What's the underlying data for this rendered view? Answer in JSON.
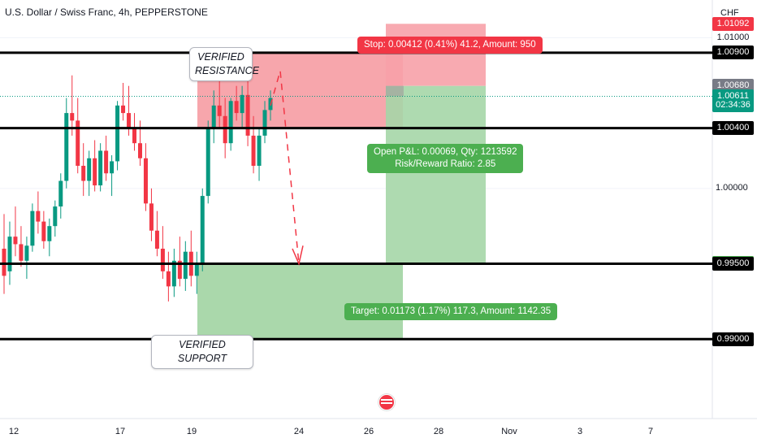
{
  "header": {
    "symbol_title": "U.S. Dollar / Swiss Franc, 4h, PEPPERSTONE",
    "currency": "CHF"
  },
  "chart_data": {
    "type": "candlestick",
    "ylim": [
      0.985,
      1.0125
    ],
    "y_tick_labels": [
      "1.01000",
      "1.00000"
    ],
    "x_tick_labels": [
      "12",
      "17",
      "19",
      "24",
      "26",
      "28",
      "Nov",
      "3",
      "7"
    ],
    "horizontal_levels": [
      {
        "price": 1.009,
        "label": "1.00900",
        "color": "#000000"
      },
      {
        "price": 1.004,
        "label": "1.00400",
        "color": "#000000"
      },
      {
        "price": 0.995,
        "label": "0.99500",
        "color": "#000000"
      },
      {
        "price": 0.99,
        "label": "0.99000",
        "color": "#000000"
      }
    ],
    "current_price": 1.00611,
    "candles": [
      [
        0.996,
        0.9983,
        0.993,
        0.9942
      ],
      [
        0.9945,
        0.9978,
        0.9936,
        0.9968
      ],
      [
        0.9968,
        0.9988,
        0.9955,
        0.9963
      ],
      [
        0.9963,
        0.9975,
        0.9948,
        0.9952
      ],
      [
        0.9952,
        0.9968,
        0.994,
        0.9962
      ],
      [
        0.9962,
        0.999,
        0.9958,
        0.9985
      ],
      [
        0.9985,
        0.9998,
        0.997,
        0.9978
      ],
      [
        0.9978,
        0.9985,
        0.996,
        0.9965
      ],
      [
        0.9965,
        0.998,
        0.9955,
        0.9975
      ],
      [
        0.9975,
        0.9992,
        0.9968,
        0.9988
      ],
      [
        0.9988,
        1.001,
        0.998,
        1.0005
      ],
      [
        1.0005,
        1.006,
        1.0,
        1.005
      ],
      [
        1.005,
        1.0075,
        1.0035,
        1.0045
      ],
      [
        1.0045,
        1.006,
        1.001,
        1.0015
      ],
      [
        1.0015,
        1.003,
        0.9995,
        1.0005
      ],
      [
        1.0005,
        1.0025,
        0.9995,
        1.002
      ],
      [
        1.002,
        1.0032,
        0.9998,
        1.0002
      ],
      [
        1.0002,
        1.003,
        0.9998,
        1.0025
      ],
      [
        1.0025,
        1.0035,
        1.0005,
        1.001
      ],
      [
        1.001,
        1.0022,
        0.9995,
        1.0018
      ],
      [
        1.0018,
        1.0058,
        1.0012,
        1.0055
      ],
      [
        1.0055,
        1.007,
        1.0045,
        1.005
      ],
      [
        1.005,
        1.0068,
        1.0035,
        1.004
      ],
      [
        1.004,
        1.005,
        1.0025,
        1.003
      ],
      [
        1.003,
        1.0045,
        1.0015,
        1.002
      ],
      [
        1.002,
        1.003,
        0.9985,
        0.999
      ],
      [
        0.999,
        1.0,
        0.9965,
        0.9972
      ],
      [
        0.9972,
        0.9985,
        0.9955,
        0.996
      ],
      [
        0.996,
        0.9975,
        0.994,
        0.9945
      ],
      [
        0.9945,
        0.9958,
        0.9925,
        0.9935
      ],
      [
        0.9935,
        0.996,
        0.9928,
        0.9952
      ],
      [
        0.9952,
        0.9968,
        0.9935,
        0.994
      ],
      [
        0.994,
        0.9965,
        0.9932,
        0.9958
      ],
      [
        0.9958,
        0.9972,
        0.9935,
        0.9942
      ],
      [
        0.9942,
        0.9958,
        0.993,
        0.995
      ],
      [
        0.995,
        1.0,
        0.9945,
        0.9995
      ],
      [
        0.9995,
        1.0045,
        0.999,
        1.004
      ],
      [
        1.004,
        1.0065,
        1.003,
        1.0055
      ],
      [
        1.0055,
        1.0072,
        1.004,
        1.0048
      ],
      [
        1.0048,
        1.006,
        1.002,
        1.003
      ],
      [
        1.003,
        1.006,
        1.0025,
        1.0058
      ],
      [
        1.0058,
        1.0068,
        1.0045,
        1.005
      ],
      [
        1.005,
        1.0068,
        1.004,
        1.0062
      ],
      [
        1.0062,
        1.0072,
        1.0028,
        1.0035
      ],
      [
        1.0035,
        1.0048,
        1.001,
        1.0015
      ],
      [
        1.0015,
        1.004,
        1.0005,
        1.0035
      ],
      [
        1.0035,
        1.0058,
        1.003,
        1.0052
      ],
      [
        1.0052,
        1.0065,
        1.0045,
        1.006
      ]
    ],
    "price_tags": [
      {
        "label": "1.01092",
        "price": 1.01092,
        "bg": "#f23645",
        "color": "#ffffff"
      },
      {
        "label": "1.01000",
        "price": 1.01,
        "bg": "#ffffff",
        "color": "#131722"
      },
      {
        "label": "1.00900",
        "price": 1.009,
        "bg": "#000000",
        "color": "#ffffff"
      },
      {
        "label": "1.00680",
        "price": 1.0068,
        "bg": "#787b86",
        "color": "#ffffff"
      },
      {
        "label": "1.00611",
        "price": 1.00611,
        "bg": "#089981",
        "color": "#ffffff"
      },
      {
        "label": "02:34:36",
        "price": 1.0055,
        "bg": "#089981",
        "color": "#ffffff"
      },
      {
        "label": "1.00400",
        "price": 1.004,
        "bg": "#000000",
        "color": "#ffffff"
      },
      {
        "label": "0.99507",
        "price": 0.99507,
        "bg": "#4caf50",
        "color": "#ffffff"
      },
      {
        "label": "0.99500",
        "price": 0.995,
        "bg": "#000000",
        "color": "#ffffff"
      },
      {
        "label": "0.99000",
        "price": 0.99,
        "bg": "#000000",
        "color": "#ffffff"
      }
    ],
    "annotations": {
      "resistance": "VERIFIED\nRESISTANCE",
      "support": "VERIFIED SUPPORT"
    },
    "position": {
      "stop_text": "Stop: 0.00412 (0.41%) 41.2, Amount: 950",
      "open_pl_text": "Open P&L: 0.00069, Qty: 1213592",
      "rr_text": "Risk/Reward Ratio: 2.85",
      "target_text": "Target: 0.01173 (1.17%) 117.3, Amount: 1142.35",
      "entry": 1.0068,
      "stop": 1.01092,
      "target": 0.99507
    },
    "colors": {
      "up": "#089981",
      "down": "#f23645",
      "zone_red": "#f7a1a8",
      "zone_green": "#a5d6a7"
    }
  }
}
